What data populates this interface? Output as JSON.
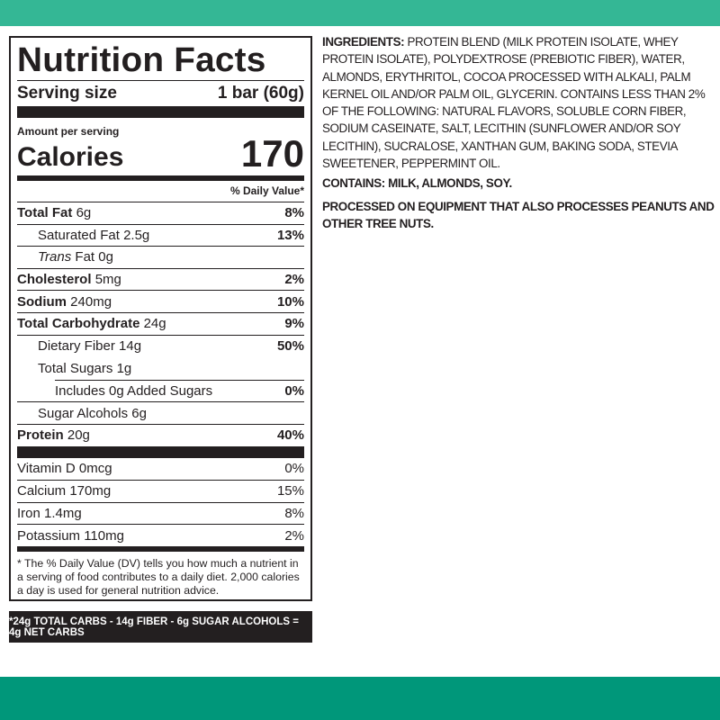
{
  "colors": {
    "top_band": "#34b795",
    "bottom_band": "#00977a",
    "ink": "#231f20"
  },
  "label": {
    "title": "Nutrition Facts",
    "serving_label": "Serving size",
    "serving_value": "1 bar (60g)",
    "amount_per_serving": "Amount per serving",
    "calories_label": "Calories",
    "calories_value": "170",
    "dv_header": "% Daily Value*",
    "nutrients": [
      {
        "name": "Total Fat",
        "amount": "6g",
        "dv": "8%"
      },
      {
        "name": "Saturated Fat",
        "amount": "2.5g",
        "dv": "13%"
      },
      {
        "name": "Trans",
        "suffix": "Fat 0g",
        "dv": ""
      },
      {
        "name": "Cholesterol",
        "amount": "5mg",
        "dv": "2%"
      },
      {
        "name": "Sodium",
        "amount": "240mg",
        "dv": "10%"
      },
      {
        "name": "Total Carbohydrate",
        "amount": "24g",
        "dv": "9%"
      },
      {
        "name": "Dietary Fiber",
        "amount": "14g",
        "dv": "50%"
      },
      {
        "name": "Total Sugars",
        "amount": "1g",
        "dv": ""
      },
      {
        "name": "Includes 0g Added Sugars",
        "amount": "",
        "dv": "0%"
      },
      {
        "name": "Sugar Alcohols",
        "amount": "6g",
        "dv": ""
      },
      {
        "name": "Protein",
        "amount": "20g",
        "dv": "40%"
      }
    ],
    "vitamins": [
      {
        "text": "Vitamin D 0mcg",
        "dv": "0%"
      },
      {
        "text": "Calcium 170mg",
        "dv": "15%"
      },
      {
        "text": "Iron 1.4mg",
        "dv": "8%"
      },
      {
        "text": "Potassium 110mg",
        "dv": "2%"
      }
    ],
    "footnote": "* The % Daily Value (DV) tells you how much a nutrient in a serving of food contributes to a daily diet. 2,000 calories a day is used for general nutrition advice."
  },
  "net_carbs": "*24g TOTAL CARBS - 14g FIBER - 6g SUGAR ALCOHOLS = 4g NET CARBS",
  "ingredients": {
    "heading": "INGREDIENTS:",
    "text": "PROTEIN BLEND (MILK PROTEIN ISOLATE, WHEY PROTEIN ISOLATE), POLYDEXTROSE (PREBIOTIC FIBER), WATER, ALMONDS, ERYTHRITOL, COCOA PROCESSED WITH ALKALI, PALM KERNEL OIL AND/OR PALM OIL, GLYCERIN. CONTAINS LESS THAN 2% OF THE FOLLOWING: NATURAL FLAVORS, SOLUBLE CORN FIBER, SODIUM CASEINATE, SALT, LECITHIN (SUNFLOWER AND/OR SOY LECITHIN), SUCRALOSE, XANTHAN GUM, BAKING SODA, STEVIA SWEETENER, PEPPERMINT OIL.",
    "contains": "CONTAINS: MILK, ALMONDS, SOY.",
    "processed": "PROCESSED ON EQUIPMENT THAT ALSO PROCESSES PEANUTS AND OTHER TREE NUTS."
  }
}
